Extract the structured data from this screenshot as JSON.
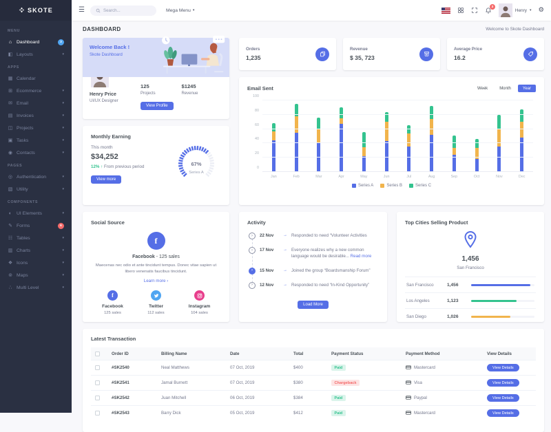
{
  "brand": {
    "name": "SKOTE"
  },
  "topbar": {
    "search_placeholder": "Search...",
    "mega_menu_label": "Mega Menu",
    "notification_count": "3",
    "user_name": "Henry"
  },
  "page": {
    "title": "DASHBOARD",
    "breadcrumb": "Welcome to Skote Dashboard"
  },
  "sidebar": {
    "sections": [
      {
        "label": "MENU",
        "items": [
          {
            "label": "Dashboard",
            "icon": "home-icon",
            "glyph": "⌂",
            "badge": "3",
            "badge_class": "info",
            "active": true
          },
          {
            "label": "Layouts",
            "icon": "layouts-icon",
            "glyph": "◧",
            "children": true
          }
        ]
      },
      {
        "label": "APPS",
        "items": [
          {
            "label": "Calendar",
            "icon": "calendar-icon",
            "glyph": "▦"
          },
          {
            "label": "Ecommerce",
            "icon": "store-icon",
            "glyph": "⊞",
            "children": true
          },
          {
            "label": "Email",
            "icon": "envelope-icon",
            "glyph": "✉",
            "children": true
          },
          {
            "label": "Invoices",
            "icon": "receipt-icon",
            "glyph": "▤",
            "children": true
          },
          {
            "label": "Projects",
            "icon": "briefcase-icon",
            "glyph": "◫",
            "children": true
          },
          {
            "label": "Tasks",
            "icon": "task-icon",
            "glyph": "▣",
            "children": true
          },
          {
            "label": "Contacts",
            "icon": "contacts-icon",
            "glyph": "◉",
            "children": true
          }
        ]
      },
      {
        "label": "PAGES",
        "items": [
          {
            "label": "Authentication",
            "icon": "user-circle-icon",
            "glyph": "◎",
            "children": true
          },
          {
            "label": "Utility",
            "icon": "file-icon",
            "glyph": "▧",
            "children": true
          }
        ]
      },
      {
        "label": "COMPONENTS",
        "items": [
          {
            "label": "UI Elements",
            "icon": "tone-icon",
            "glyph": "◐",
            "children": true
          },
          {
            "label": "Forms",
            "icon": "pencil-icon",
            "glyph": "✎",
            "badge": "6",
            "badge_class": "danger"
          },
          {
            "label": "Tables",
            "icon": "table-icon",
            "glyph": "☷",
            "children": true
          },
          {
            "label": "Charts",
            "icon": "bar-chart-icon",
            "glyph": "▥",
            "children": true
          },
          {
            "label": "Icons",
            "icon": "diamond-icon",
            "glyph": "❖",
            "children": true
          },
          {
            "label": "Maps",
            "icon": "map-pin-icon",
            "glyph": "⊚",
            "children": true
          },
          {
            "label": "Multi Level",
            "icon": "share-icon",
            "glyph": "∴",
            "children": true
          }
        ]
      }
    ]
  },
  "profile_card": {
    "welcome_title": "Welcome Back !",
    "welcome_subtitle": "Skote Dashboard",
    "name": "Henry Price",
    "role": "UI/UX Designer",
    "stats": [
      {
        "value": "125",
        "label": "Projects"
      },
      {
        "value": "$1245",
        "label": "Revenue"
      }
    ],
    "button_label": "View Profile"
  },
  "monthly_earning": {
    "title": "Monthly Earning",
    "period": "This month",
    "amount": "$34,252",
    "delta": "12%",
    "delta_arrow": "↑",
    "delta_note": "From previous period",
    "button_label": "View more",
    "gauge_percent": 67,
    "gauge_text": "67%",
    "gauge_series": "Series A"
  },
  "stat_cards": [
    {
      "label": "Orders",
      "value": "1,235",
      "icon": "copy-icon"
    },
    {
      "label": "Revenue",
      "value": "$ 35, 723",
      "icon": "archive-icon"
    },
    {
      "label": "Average Price",
      "value": "16.2",
      "icon": "purchase-tag-icon"
    }
  ],
  "chart_data": {
    "type": "bar",
    "stacked": true,
    "title": "Email Sent",
    "period_options": [
      "Week",
      "Month",
      "Year"
    ],
    "active_period": "Year",
    "categories": [
      "Jan",
      "Feb",
      "Mar",
      "Apr",
      "May",
      "Jun",
      "Jul",
      "Aug",
      "Sep",
      "Oct",
      "Nov",
      "Dec"
    ],
    "series": [
      {
        "name": "Series A",
        "color": "#556ee6",
        "values": [
          44,
          55,
          41,
          67,
          22,
          43,
          36,
          52,
          24,
          18,
          36,
          48
        ]
      },
      {
        "name": "Series B",
        "color": "#f1b44c",
        "values": [
          13,
          23,
          20,
          8,
          13,
          27,
          18,
          22,
          10,
          16,
          24,
          22
        ]
      },
      {
        "name": "Series C",
        "color": "#34c38f",
        "values": [
          11,
          17,
          15,
          15,
          21,
          14,
          11,
          18,
          17,
          12,
          20,
          18
        ]
      }
    ],
    "ylim": [
      0,
      100
    ],
    "yticks": [
      0,
      20,
      40,
      60,
      80,
      100
    ],
    "legend_position": "bottom",
    "grid": true
  },
  "social": {
    "title": "Social Source",
    "headline_brand": "Facebook",
    "headline_rest": " - 125 sales",
    "description": "Maecenas nec odio et ante tincidunt tempus. Donec vitae sapien ut libero venenatis faucibus tincidunt.",
    "link_label": "Learn more",
    "link_arrow": "›",
    "items": [
      {
        "name": "Facebook",
        "sales": "125 sales",
        "icon": "facebook-icon",
        "color": "#556ee6"
      },
      {
        "name": "Twitter",
        "sales": "112 sales",
        "icon": "twitter-icon",
        "color": "#50a5f1"
      },
      {
        "name": "Instagram",
        "sales": "104 sales",
        "icon": "instagram-icon",
        "color": "#e83e8c"
      }
    ]
  },
  "activity": {
    "title": "Activity",
    "items": [
      {
        "date": "22 Nov",
        "text": "Responded to need “Volunteer Activities"
      },
      {
        "date": "17 Nov",
        "text": "Everyone realizes why a new common language would be desirable...",
        "link": "Read more"
      },
      {
        "date": "15 Nov",
        "text": "Joined the group “Boardsmanship Forum”",
        "active": true
      },
      {
        "date": "12 Nov",
        "text": "Responded to need “In-Kind Opportunity”"
      }
    ],
    "button_label": "Load More"
  },
  "top_cities": {
    "title": "Top Cities Selling Product",
    "highlight_value": "1,456",
    "highlight_city": "San Francisco",
    "rows": [
      {
        "city": "San Francisco",
        "value": "1,456",
        "color": "#556ee6",
        "percent": 94
      },
      {
        "city": "Los Angeles",
        "value": "1,123",
        "color": "#34c38f",
        "percent": 72
      },
      {
        "city": "San Diego",
        "value": "1,026",
        "color": "#f1b44c",
        "percent": 62
      }
    ]
  },
  "transactions": {
    "title": "Latest Transaction",
    "headers": [
      "Order ID",
      "Billing Name",
      "Date",
      "Total",
      "Payment Status",
      "Payment Method",
      "View Details"
    ],
    "rows": [
      {
        "order_id": "#SK2540",
        "name": "Neal Matthews",
        "date": "07 Oct, 2019",
        "total": "$400",
        "status": "Paid",
        "status_type": "success",
        "method": "Mastercard"
      },
      {
        "order_id": "#SK2541",
        "name": "Jamal Burnett",
        "date": "07 Oct, 2019",
        "total": "$380",
        "status": "Chargeback",
        "status_type": "danger",
        "method": "Visa"
      },
      {
        "order_id": "#SK2542",
        "name": "Juan Mitchell",
        "date": "06 Oct, 2019",
        "total": "$384",
        "status": "Paid",
        "status_type": "success",
        "method": "Paypal"
      },
      {
        "order_id": "#SK2543",
        "name": "Barry Dick",
        "date": "05 Oct, 2019",
        "total": "$412",
        "status": "Paid",
        "status_type": "success",
        "method": "Mastercard"
      }
    ],
    "view_button_label": "View Details"
  },
  "colors": {
    "primary": "#556ee6",
    "success": "#34c38f",
    "warning": "#f1b44c",
    "danger": "#f46a6a",
    "info": "#50a5f1",
    "instagram": "#e83e8c",
    "sidebar_bg": "#2a3042",
    "body_bg": "#f8f8fb",
    "heading": "#495057",
    "muted": "#74788d"
  }
}
